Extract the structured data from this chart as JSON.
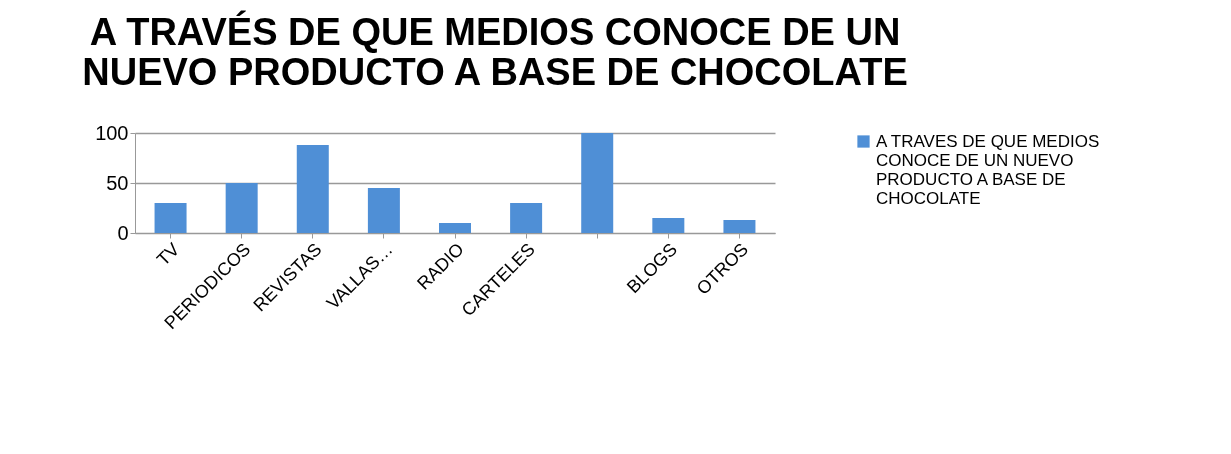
{
  "chart_data": {
    "type": "bar",
    "title": "A TRAVÉS DE QUE MEDIOS CONOCE DE UN NUEVO PRODUCTO A BASE DE CHOCOLATE",
    "categories": [
      "TV",
      "PERIODICOS",
      "REVISTAS",
      "VALLAS…",
      "RADIO",
      "CARTELES",
      null,
      "BLOGS",
      "OTROS"
    ],
    "series": [
      {
        "name": "A TRAVES DE QUE MEDIOS CONOCE DE UN NUEVO PRODUCTO A BASE DE CHOCOLATE",
        "color": "#4f8fd6",
        "values": [
          30,
          50,
          88,
          45,
          10,
          30,
          100,
          15,
          13
        ]
      }
    ],
    "ylim": [
      0,
      100
    ],
    "yticks": [
      0,
      50,
      100
    ],
    "grid": "y",
    "legend": "right"
  }
}
